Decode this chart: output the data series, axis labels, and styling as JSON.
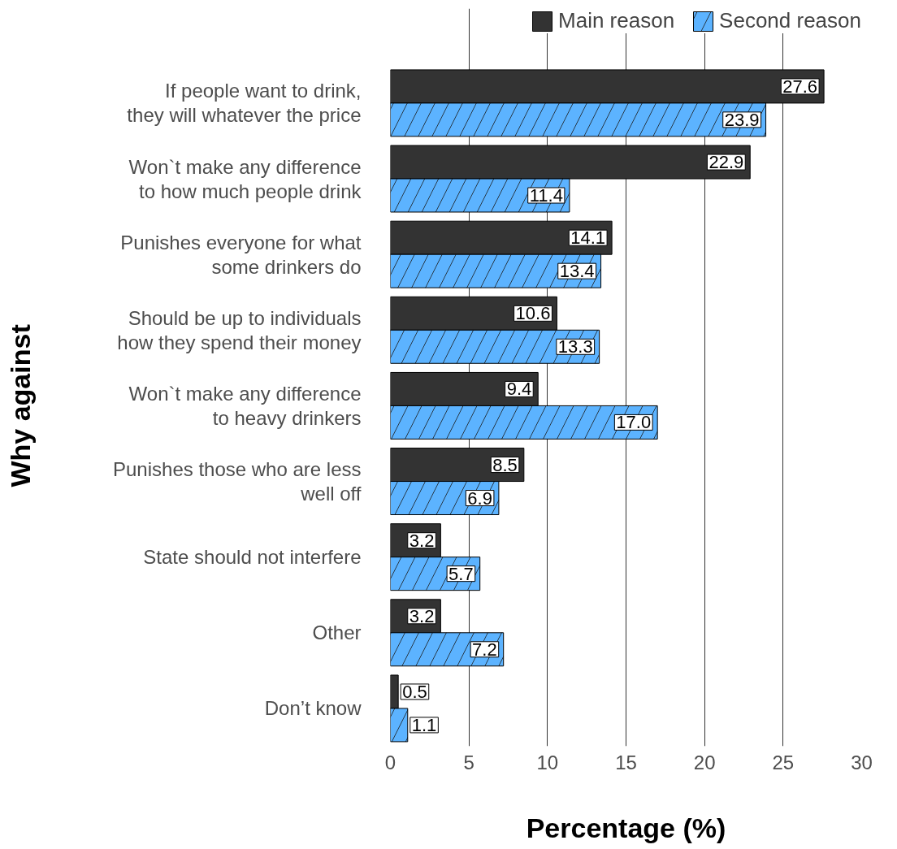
{
  "chart_data": {
    "type": "bar",
    "orientation": "horizontal",
    "xlabel": "Percentage (%)",
    "ylabel": "Why against",
    "categories": [
      "If people want to drink,\nthey will whatever the price",
      "Won`t make any difference\nto how much people drink",
      "Punishes everyone for what\nsome drinkers do",
      "Should be up to individuals\nhow they spend their money",
      "Won`t make any difference\nto heavy drinkers",
      "Punishes those who are less\nwell off",
      "State should not interfere",
      "Other",
      "Don’t know"
    ],
    "series": [
      {
        "name": "Main reason",
        "color": "#333333",
        "values": [
          27.6,
          22.9,
          14.1,
          10.6,
          9.4,
          8.5,
          3.2,
          3.2,
          0.5
        ],
        "value_labels": [
          "27.6",
          "22.9",
          "14.1",
          "10.6",
          "9.4",
          "8.5",
          "3.2",
          "3.2",
          "0.5"
        ]
      },
      {
        "name": "Second reason",
        "color": "#5cb3ff",
        "values": [
          23.9,
          11.4,
          13.4,
          13.3,
          17.0,
          6.9,
          5.7,
          7.2,
          1.1
        ],
        "value_labels": [
          "23.9",
          "11.4",
          "13.4",
          "13.3",
          "17.0",
          "6.9",
          "5.7",
          "7.2",
          "1.1"
        ]
      }
    ],
    "xlim": [
      0,
      30
    ],
    "xticks": [
      0,
      5,
      10,
      15,
      20,
      25,
      30
    ],
    "grid": "x",
    "legend": "top right",
    "data_labels": true
  }
}
